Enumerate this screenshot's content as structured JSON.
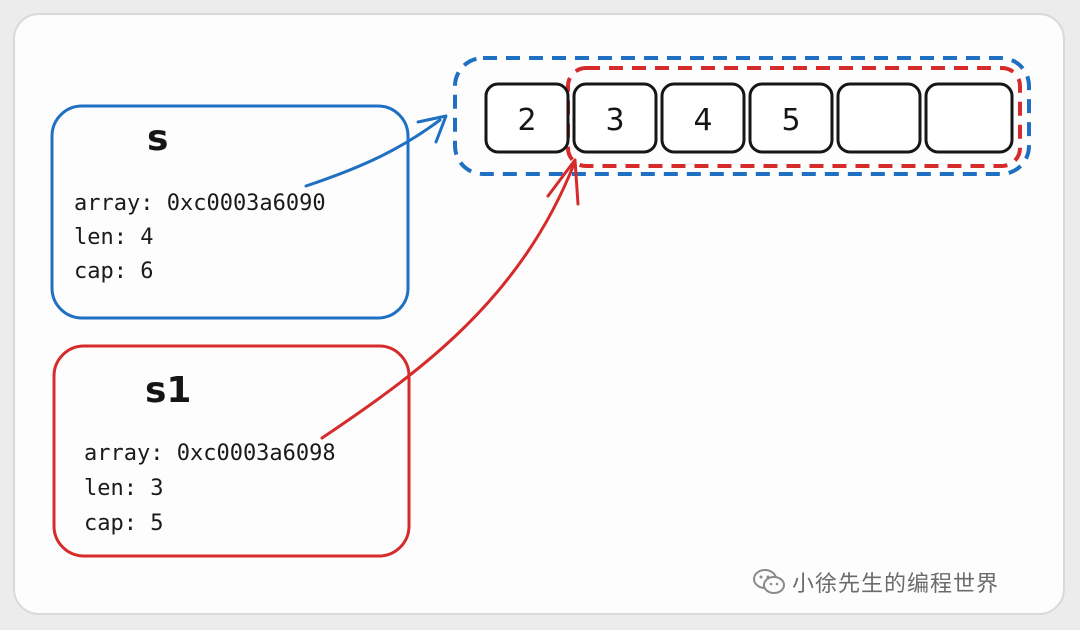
{
  "struct_s": {
    "name": "s",
    "array": "array: 0xc0003a6090",
    "len": "len: 4",
    "cap": "cap: 6",
    "color": "#1f6fc2"
  },
  "struct_s1": {
    "name": "s1",
    "array": "array: 0xc0003a6098",
    "len": "len: 3",
    "cap": "cap: 5",
    "color": "#d62b2b"
  },
  "underlying_array": {
    "cells": [
      "2",
      "3",
      "4",
      "5",
      "",
      ""
    ]
  },
  "watermark": {
    "icon": "wechat-icon",
    "text": "小徐先生的编程世界"
  }
}
